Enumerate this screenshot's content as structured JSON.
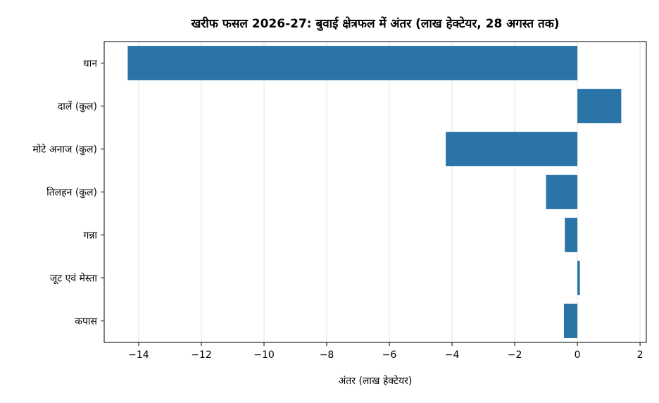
{
  "chart_data": {
    "type": "bar",
    "orientation": "horizontal",
    "title": "खरीफ फसल 2026-27: बुवाई क्षेत्रफल में अंतर (लाख हेक्टेयर, 28 अगस्त तक)",
    "xlabel": "अंतर (लाख हेक्टेयर)",
    "ylabel": "",
    "categories": [
      "धान",
      "दालें (कुल)",
      "मोटे अनाज (कुल)",
      "तिलहन (कुल)",
      "गन्ना",
      "जूट एवं मेस्ता",
      "कपास"
    ],
    "values": [
      -14.35,
      1.4,
      -4.2,
      -1.0,
      -0.4,
      0.08,
      -0.43
    ],
    "xlim": [
      -15.1,
      2.2
    ],
    "xticks": [
      -14,
      -12,
      -10,
      -8,
      -6,
      -4,
      -2,
      0,
      2
    ],
    "xtick_labels": [
      "−14",
      "−12",
      "−10",
      "−8",
      "−6",
      "−4",
      "−2",
      "0",
      "2"
    ],
    "grid": "x",
    "legend": "none",
    "bar_color": "#2a74a8",
    "grid_color": "#e3e3e3"
  }
}
